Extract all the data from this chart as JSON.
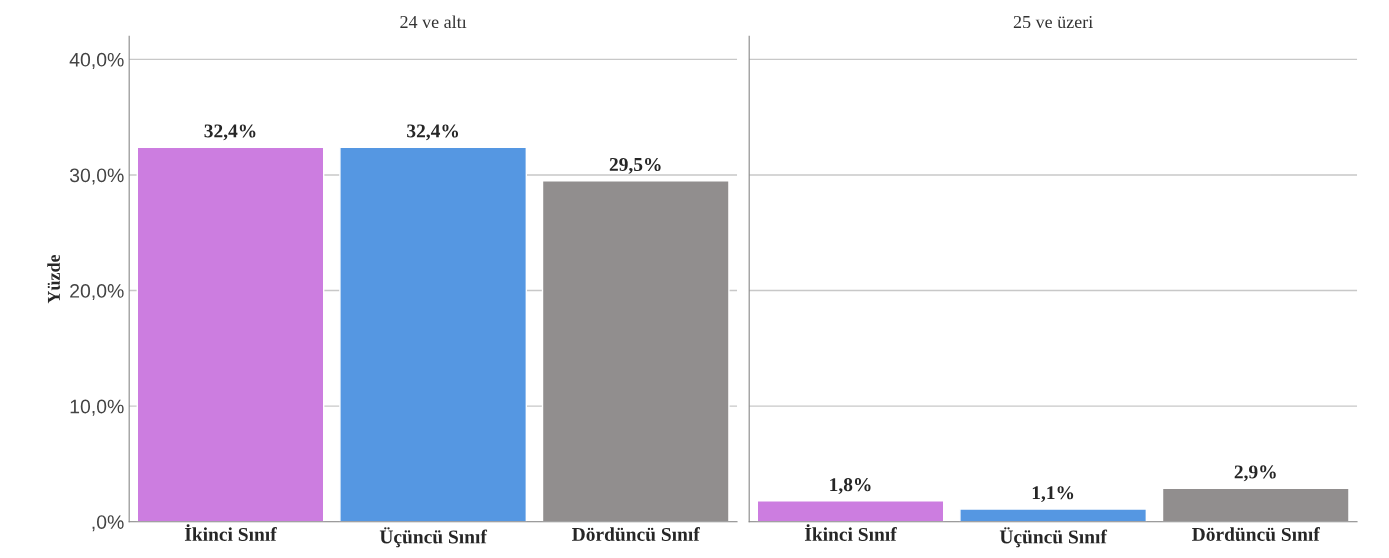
{
  "chart_data": [
    {
      "type": "bar",
      "title": "24 ve altı",
      "ylabel": "Yüzde",
      "categories": [
        "İkinci Sınıf",
        "Üçüncü Sınıf",
        "Dördüncü Sınıf"
      ],
      "values": [
        32.4,
        32.4,
        29.5
      ],
      "colors": [
        "#cc7de0",
        "#5597e2",
        "#918e8e"
      ],
      "value_labels": [
        "32,4%",
        "32,4%",
        "29,5%"
      ],
      "ylim": [
        0,
        42
      ],
      "yticks": [
        {
          "value": 0,
          "label": ",0%"
        },
        {
          "value": 10,
          "label": "10,0%"
        },
        {
          "value": 20,
          "label": "20,0%"
        },
        {
          "value": 30,
          "label": "30,0%"
        },
        {
          "value": 40,
          "label": "40,0%"
        }
      ],
      "grid": "y"
    },
    {
      "type": "bar",
      "title": "25 ve üzeri",
      "categories": [
        "İkinci Sınıf",
        "Üçüncü Sınıf",
        "Dördüncü Sınıf"
      ],
      "values": [
        1.8,
        1.1,
        2.9
      ],
      "colors": [
        "#cc7de0",
        "#5597e2",
        "#918e8e"
      ],
      "value_labels": [
        "1,8%",
        "1,1%",
        "2,9%"
      ],
      "ylim": [
        0,
        42
      ],
      "yticks": [
        {
          "value": 0,
          "label": null
        },
        {
          "value": 10,
          "label": null
        },
        {
          "value": 20,
          "label": null
        },
        {
          "value": 30,
          "label": null
        },
        {
          "value": 40,
          "label": null
        }
      ],
      "grid": "y",
      "tick_labels": "x"
    }
  ]
}
